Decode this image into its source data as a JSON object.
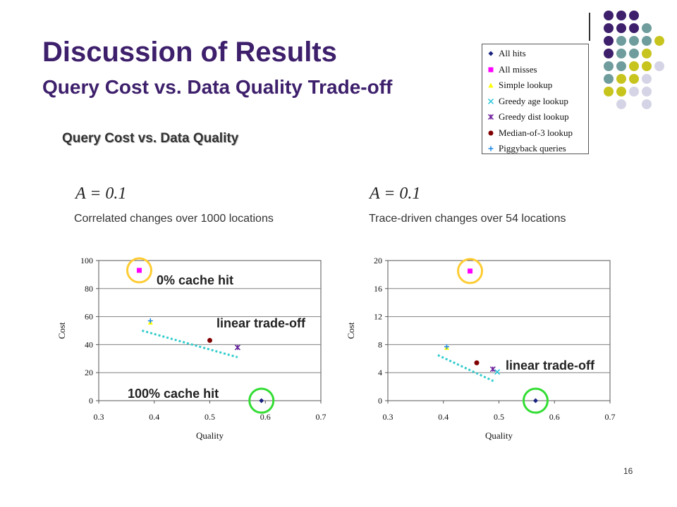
{
  "slide": {
    "title": "Discussion of Results",
    "subtitle": "Query Cost vs. Data Quality Trade-off",
    "heading": "Query Cost vs. Data Quality",
    "page_number": "16"
  },
  "panels": [
    {
      "a_param": "A = 0.1",
      "description": "Correlated changes over 1000 locations"
    },
    {
      "a_param": "A = 0.1",
      "description": "Trace-driven changes over 54 locations"
    }
  ],
  "legend": {
    "items": [
      {
        "label": "All hits",
        "marker": "diamond",
        "color": "#1a237e"
      },
      {
        "label": "All misses",
        "marker": "square",
        "color": "#ff00ff"
      },
      {
        "label": "Simple lookup",
        "marker": "triangle",
        "color": "#ffff00"
      },
      {
        "label": "Greedy age lookup",
        "marker": "x",
        "color": "#26c6da"
      },
      {
        "label": "Greedy dist lookup",
        "marker": "star",
        "color": "#6a1b9a"
      },
      {
        "label": "Median-of-3 lookup",
        "marker": "circle",
        "color": "#800000"
      },
      {
        "label": "Piggyback queries",
        "marker": "plus",
        "color": "#1e88e5"
      }
    ]
  },
  "annotations": {
    "zero_hit": "0% cache hit",
    "full_hit": "100% cache hit",
    "tradeoff_left": "linear trade-off",
    "tradeoff_right": "linear trade-off"
  },
  "chart_data": [
    {
      "type": "scatter",
      "xlabel": "Quality",
      "ylabel": "Cost",
      "xlim": [
        0.3,
        0.7
      ],
      "ylim": [
        0,
        100
      ],
      "xticks": [
        "0.3",
        "0.4",
        "0.5",
        "0.6",
        "0.7"
      ],
      "yticks": [
        "0",
        "20",
        "40",
        "60",
        "80",
        "100"
      ],
      "series": [
        {
          "name": "All hits",
          "x": [
            0.593
          ],
          "y": [
            0
          ]
        },
        {
          "name": "All misses",
          "x": [
            0.373
          ],
          "y": [
            93
          ]
        },
        {
          "name": "Simple lookup",
          "x": [
            0.393
          ],
          "y": [
            56
          ]
        },
        {
          "name": "Greedy age lookup",
          "x": [
            0.55
          ],
          "y": [
            38
          ]
        },
        {
          "name": "Greedy dist lookup",
          "x": [
            0.55
          ],
          "y": [
            38
          ]
        },
        {
          "name": "Median-of-3 lookup",
          "x": [
            0.5
          ],
          "y": [
            43
          ]
        },
        {
          "name": "Piggyback queries",
          "x": [
            0.393
          ],
          "y": [
            57
          ]
        }
      ],
      "trend_line": {
        "x": [
          0.378,
          0.55
        ],
        "y": [
          50,
          31
        ]
      },
      "highlight_circles": [
        {
          "x": 0.373,
          "y": 93
        },
        {
          "x": 0.593,
          "y": 0
        }
      ]
    },
    {
      "type": "scatter",
      "xlabel": "Quality",
      "ylabel": "Cost",
      "xlim": [
        0.3,
        0.7
      ],
      "ylim": [
        0,
        20
      ],
      "xticks": [
        "0.3",
        "0.4",
        "0.5",
        "0.6",
        "0.7"
      ],
      "yticks": [
        "0",
        "4",
        "8",
        "12",
        "16",
        "20"
      ],
      "series": [
        {
          "name": "All hits",
          "x": [
            0.566
          ],
          "y": [
            0
          ]
        },
        {
          "name": "All misses",
          "x": [
            0.448
          ],
          "y": [
            18.5
          ]
        },
        {
          "name": "Simple lookup",
          "x": [
            0.406
          ],
          "y": [
            7.6
          ]
        },
        {
          "name": "Greedy age lookup",
          "x": [
            0.497
          ],
          "y": [
            4.1
          ]
        },
        {
          "name": "Greedy dist lookup",
          "x": [
            0.489
          ],
          "y": [
            4.5
          ]
        },
        {
          "name": "Median-of-3 lookup",
          "x": [
            0.46
          ],
          "y": [
            5.4
          ]
        },
        {
          "name": "Piggyback queries",
          "x": [
            0.406
          ],
          "y": [
            7.7
          ]
        }
      ],
      "trend_line": {
        "x": [
          0.39,
          0.49
        ],
        "y": [
          6.5,
          2.8
        ]
      },
      "highlight_circles": [
        {
          "x": 0.448,
          "y": 18.5
        },
        {
          "x": 0.566,
          "y": 0
        }
      ]
    }
  ]
}
